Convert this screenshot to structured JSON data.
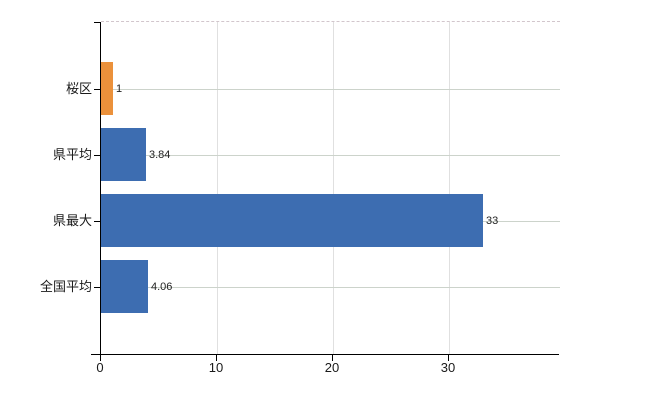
{
  "chart_data": {
    "type": "bar",
    "orientation": "horizontal",
    "title": "",
    "xlabel": "",
    "ylabel": "",
    "categories": [
      "桜区",
      "県平均",
      "県最大",
      "全国平均"
    ],
    "values": [
      1,
      3.84,
      33,
      4.06
    ],
    "value_labels": [
      "1",
      "3.84",
      "33",
      "4.06"
    ],
    "bar_colors": [
      "#eb913b",
      "#3d6db1",
      "#3d6db1",
      "#3d6db1"
    ],
    "xticks": [
      0,
      10,
      20,
      30
    ],
    "xtick_labels": [
      "0",
      "10",
      "20",
      "30"
    ],
    "xlim": [
      0,
      39.6
    ],
    "grid": true,
    "legend": "none",
    "colors": {
      "accent_blue": "#3d6db1",
      "accent_orange": "#eb913b",
      "axis": "#000000",
      "hgrid": "#ccd3cb",
      "vgrid": "#e0e0e0",
      "top_border": "#d2c6cc",
      "background": "#ffffff"
    }
  }
}
